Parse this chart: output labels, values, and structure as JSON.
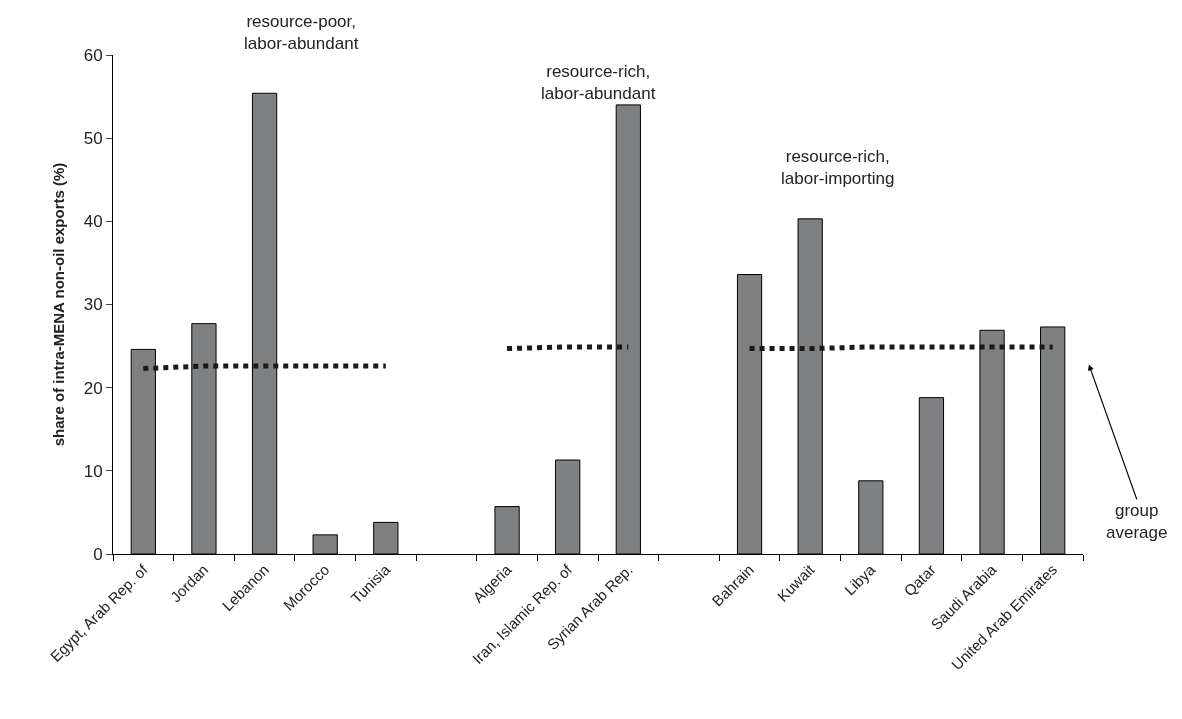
{
  "chart_data": {
    "type": "bar",
    "categories": [
      "Egypt, Arab Rep. of",
      "Jordan",
      "Lebanon",
      "Morocco",
      "Tunisia",
      null,
      "Algeria",
      "Iran, Islamic Rep. of",
      "Syrian Arab Rep.",
      null,
      "Bahrain",
      "Kuwait",
      "Libya",
      "Qatar",
      "Saudi Arabia",
      "United Arab Emirates"
    ],
    "series": [
      {
        "color": "#7f8082",
        "values": [
          24.6,
          27.7,
          55.4,
          2.3,
          3.8,
          null,
          5.7,
          11.3,
          54.0,
          null,
          33.6,
          40.3,
          8.8,
          18.8,
          26.9,
          27.3
        ]
      },
      {
        "type": "line",
        "color": "#1a1a1a",
        "line_style": "dotted",
        "marker": "none",
        "values": [
          22.3,
          22.6,
          22.6,
          22.6,
          22.6,
          null,
          null,
          null,
          null,
          null,
          null,
          null,
          null,
          null,
          null,
          null
        ]
      },
      {
        "type": "line",
        "color": "#1a1a1a",
        "line_style": "dotted",
        "marker": "none",
        "values": [
          null,
          null,
          null,
          null,
          null,
          null,
          24.7,
          24.9,
          24.9,
          null,
          null,
          null,
          null,
          null,
          null,
          null
        ]
      },
      {
        "type": "line",
        "color": "#1a1a1a",
        "line_style": "dotted",
        "marker": "none",
        "values": [
          null,
          null,
          null,
          null,
          null,
          null,
          null,
          null,
          null,
          null,
          24.7,
          24.7,
          24.9,
          24.9,
          24.9,
          24.9
        ]
      }
    ],
    "ylabel": "share of intra-MENA non-oil exports (%)",
    "ylim": [
      0,
      60
    ],
    "yticks": [
      0,
      10,
      20,
      30,
      40,
      50,
      60
    ],
    "annotations": [
      "resource-poor,\nlabor-abundant",
      "resource-rich,\nlabor-abundant",
      "resource-rich,\nlabor-importing",
      "group\naverage"
    ]
  }
}
